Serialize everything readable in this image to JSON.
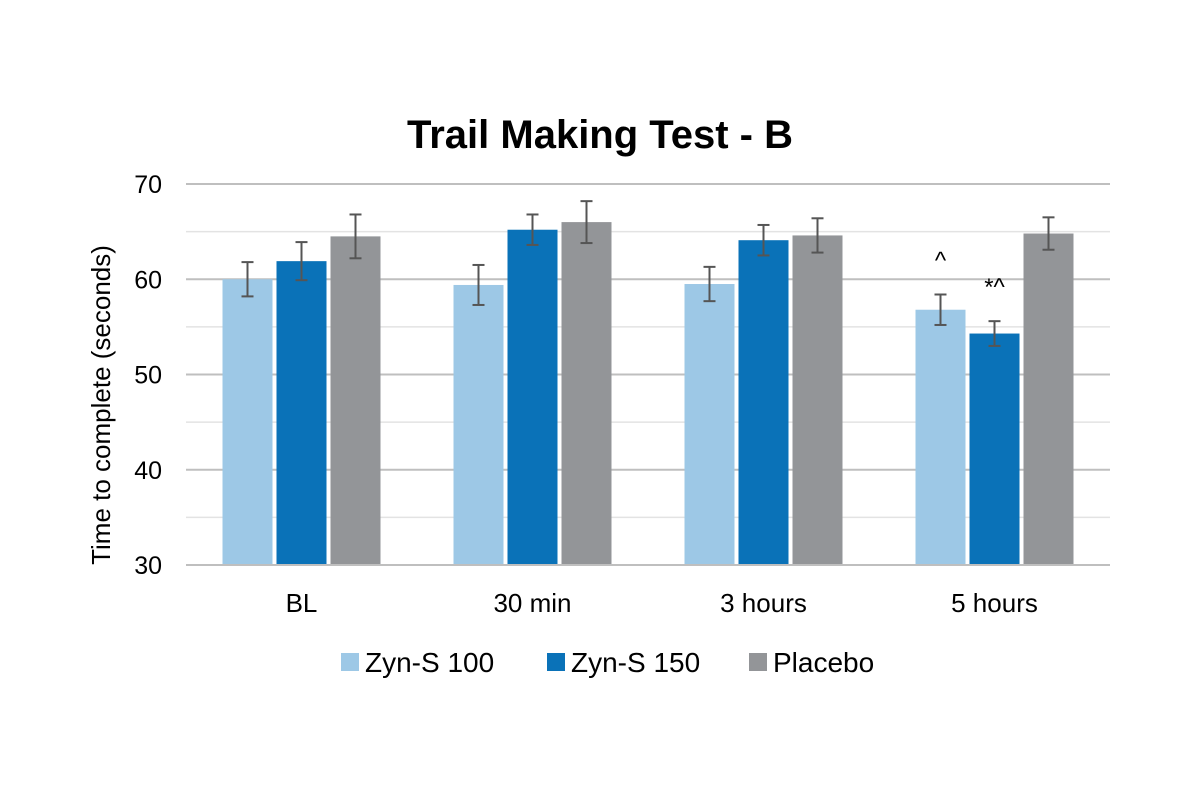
{
  "chart_data": {
    "type": "bar",
    "title": "Trail Making Test - B",
    "ylabel": "Time to complete (seconds)",
    "xlabel": "",
    "ylim": [
      30,
      70
    ],
    "yticks": [
      30,
      40,
      50,
      60,
      70
    ],
    "grid": true,
    "legend_position": "bottom",
    "categories": [
      "BL",
      "30 min",
      "3 hours",
      "5 hours"
    ],
    "series": [
      {
        "name": "Zyn-S 100",
        "color": "#9dc8e6",
        "values": [
          60.0,
          59.4,
          59.5,
          56.8
        ],
        "errors": [
          1.8,
          2.1,
          1.8,
          1.6
        ]
      },
      {
        "name": "Zyn-S 150",
        "color": "#0a72b8",
        "values": [
          61.9,
          65.2,
          64.1,
          54.3
        ],
        "errors": [
          2.0,
          1.6,
          1.6,
          1.3
        ]
      },
      {
        "name": "Placebo",
        "color": "#939598",
        "values": [
          64.5,
          66.0,
          64.6,
          64.8
        ],
        "errors": [
          2.3,
          2.2,
          1.8,
          1.7
        ]
      }
    ],
    "annotations": [
      {
        "category": "5 hours",
        "series": "Zyn-S 100",
        "text": "^"
      },
      {
        "category": "5 hours",
        "series": "Zyn-S 150",
        "text": "*^"
      }
    ]
  }
}
